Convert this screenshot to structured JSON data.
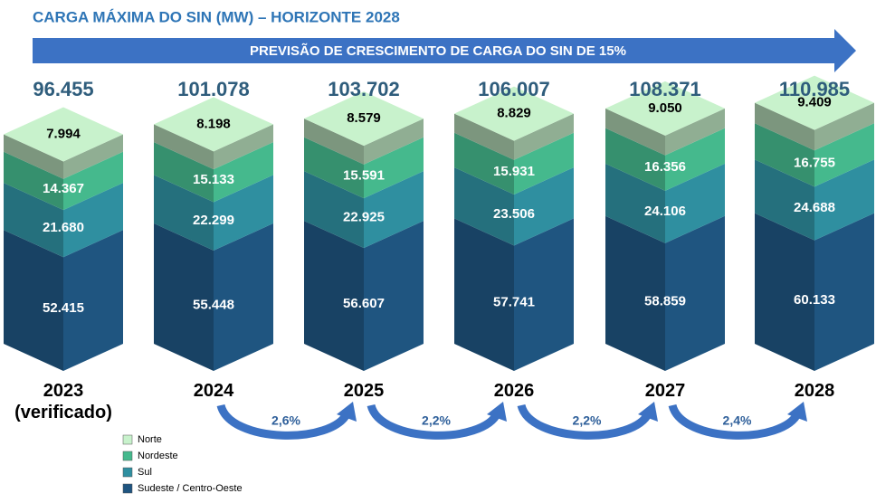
{
  "chart_data": {
    "type": "stacked-block",
    "title": "CARGA MÁXIMA DO SIN (MW) – HORIZONTE 2028",
    "subtitle": "PREVISÃO DE CRESCIMENTO DE CARGA DO SIN DE 15%",
    "categories": [
      "2023 (verificado)",
      "2024",
      "2025",
      "2026",
      "2027",
      "2028"
    ],
    "totals": {
      "values": [
        96455,
        101078,
        103702,
        106007,
        108371,
        110985
      ],
      "value_labels": [
        "96.455",
        "101.078",
        "103.702",
        "106.007",
        "108.371",
        "110.985"
      ]
    },
    "series": [
      {
        "name": "Sudeste / Centro-Oeste",
        "color": "#1f5580",
        "values": [
          52415,
          55448,
          56607,
          57741,
          58859,
          60133
        ],
        "value_labels": [
          "52.415",
          "55.448",
          "56.607",
          "57.741",
          "58.859",
          "60.133"
        ]
      },
      {
        "name": "Sul",
        "color": "#2f8fa0",
        "values": [
          21680,
          22299,
          22925,
          23506,
          24106,
          24688
        ],
        "value_labels": [
          "21.680",
          "22.299",
          "22.925",
          "23.506",
          "24.106",
          "24.688"
        ]
      },
      {
        "name": "Nordeste",
        "color": "#45b98d",
        "values": [
          14367,
          15133,
          15591,
          15931,
          16356,
          16755
        ],
        "value_labels": [
          "14.367",
          "15.133",
          "15.591",
          "15.931",
          "16.356",
          "16.755"
        ]
      },
      {
        "name": "Norte",
        "color": "#c8f2cc",
        "values": [
          7994,
          8198,
          8579,
          8829,
          9050,
          9409
        ],
        "value_labels": [
          "7.994",
          "8.198",
          "8.579",
          "8.829",
          "9.050",
          "9.409"
        ]
      }
    ],
    "growth": {
      "values": [
        2.6,
        2.2,
        2.2,
        2.4
      ],
      "value_labels": [
        "2,6%",
        "2,2%",
        "2,2%",
        "2,4%"
      ]
    }
  }
}
